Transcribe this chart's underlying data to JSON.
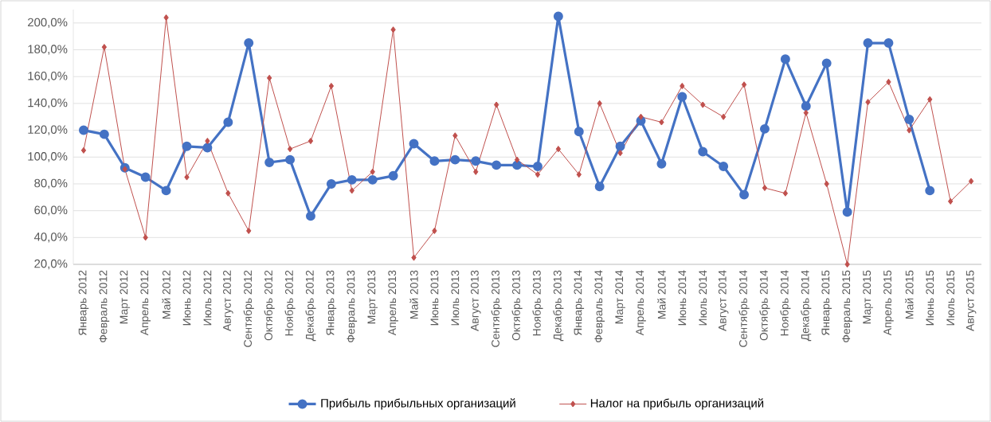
{
  "chart_data": {
    "type": "line",
    "categories": [
      "Январь 2012",
      "Февраль 2012",
      "Март 2012",
      "Апрель 2012",
      "Май 2012",
      "Июнь 2012",
      "Июль 2012",
      "Август 2012",
      "Сентябрь 2012",
      "Октябрь 2012",
      "Ноябрь 2012",
      "Декабрь 2012",
      "Январь 2013",
      "Февраль 2013",
      "Март 2013",
      "Апрель 2013",
      "Май 2013",
      "Июнь 2013",
      "Июль 2013",
      "Август 2013",
      "Сентябрь 2013",
      "Октябрь 2013",
      "Ноябрь 2013",
      "Декабрь 2013",
      "Январь 2014",
      "Февраль 2014",
      "Март 2014",
      "Апрель 2014",
      "Май 2014",
      "Июнь 2014",
      "Июль 2014",
      "Август 2014",
      "Сентябрь 2014",
      "Октябрь 2014",
      "Ноябрь 2014",
      "Декабрь 2014",
      "Январь 2015",
      "Февраль 2015",
      "Март 2015",
      "Апрель 2015",
      "Май 2015",
      "Июнь 2015",
      "Июль 2015",
      "Август 2015"
    ],
    "series": [
      {
        "name": "Прибыль прибыльных организаций",
        "color": "#4472c4",
        "marker": "circle",
        "values": [
          120,
          117,
          92,
          85,
          75,
          108,
          107,
          126,
          185,
          96,
          98,
          56,
          80,
          83,
          83,
          86,
          110,
          97,
          98,
          97,
          94,
          94,
          93,
          205,
          119,
          78,
          108,
          127,
          95,
          145,
          104,
          93,
          72,
          121,
          173,
          138,
          170,
          59,
          185,
          185,
          128,
          75,
          null,
          null
        ]
      },
      {
        "name": "Налог на прибыль организаций",
        "color": "#c0504d",
        "marker": "diamond",
        "values": [
          105,
          182,
          91,
          40,
          204,
          85,
          112,
          73,
          45,
          159,
          106,
          112,
          153,
          75,
          89,
          195,
          25,
          45,
          116,
          89,
          139,
          98,
          87,
          106,
          87,
          140,
          103,
          130,
          126,
          153,
          139,
          130,
          154,
          77,
          73,
          133,
          80,
          20,
          141,
          156,
          120,
          143,
          67,
          82
        ]
      }
    ],
    "ylim": [
      20,
      210
    ],
    "yticks": [
      {
        "value": 20,
        "label": "20,0%"
      },
      {
        "value": 40,
        "label": "40,0%"
      },
      {
        "value": 60,
        "label": "60,0%"
      },
      {
        "value": 80,
        "label": "80,0%"
      },
      {
        "value": 100,
        "label": "100,0%"
      },
      {
        "value": 120,
        "label": "120,0%"
      },
      {
        "value": 140,
        "label": "140,0%"
      },
      {
        "value": 160,
        "label": "160,0%"
      },
      {
        "value": 180,
        "label": "180,0%"
      },
      {
        "value": 200,
        "label": "200,0%"
      }
    ],
    "grid": "y",
    "legend": "bottom",
    "line_style": "solid"
  }
}
